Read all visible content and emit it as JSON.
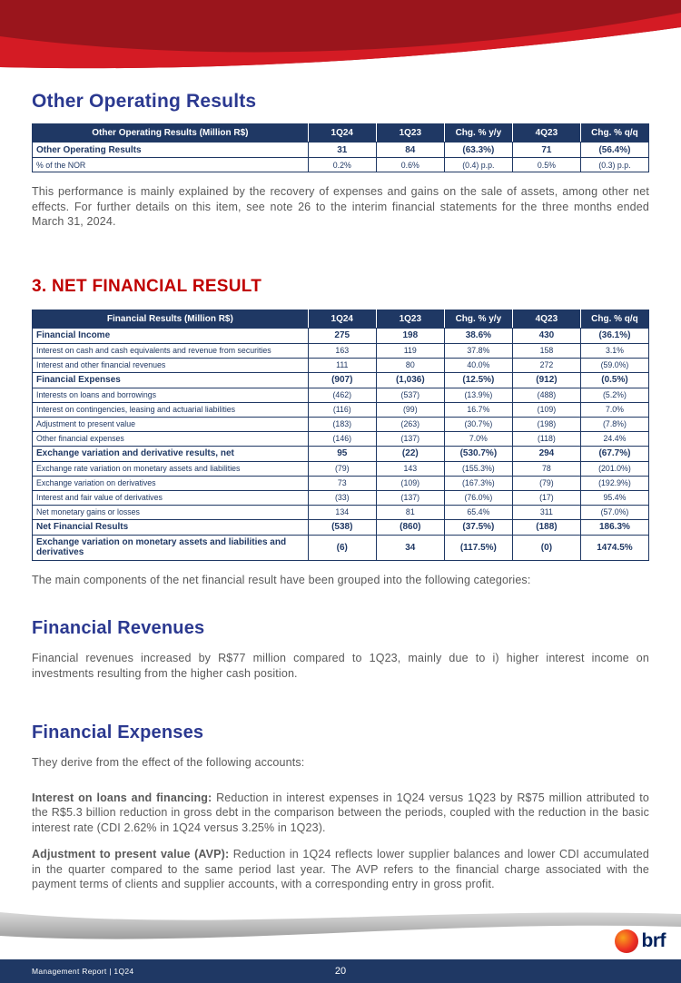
{
  "colors": {
    "banner_dark_red": "#9A151C",
    "banner_red": "#D41B24",
    "table_header_navy": "#1F3864",
    "heading_blue": "#2B3990",
    "heading_red": "#C00000",
    "body_gray": "#595959",
    "footer_gray": "#BFBFBF",
    "footer_navy": "#1F3864"
  },
  "heading1": "Other Operating Results",
  "table1": {
    "headers": [
      "Other Operating Results (Million R$)",
      "1Q24",
      "1Q23",
      "Chg. % y/y",
      "4Q23",
      "Chg. % q/q"
    ],
    "rows": [
      {
        "label": "Other Operating Results",
        "bold": true,
        "values": [
          "31",
          "84",
          "(63.3%)",
          "71",
          "(56.4%)"
        ]
      },
      {
        "label": "% of the NOR",
        "bold": false,
        "values": [
          "0.2%",
          "0.6%",
          "(0.4) p.p.",
          "0.5%",
          "(0.3) p.p."
        ]
      }
    ]
  },
  "para1": "This performance is mainly explained by the recovery of expenses and gains on the sale of assets, among other net effects. For further details on this item, see note 26 to the interim financial statements for the three months ended March 31, 2024.",
  "heading2": "3. NET FINANCIAL RESULT",
  "table2": {
    "headers": [
      "Financial Results (Million R$)",
      "1Q24",
      "1Q23",
      "Chg. % y/y",
      "4Q23",
      "Chg. % q/q"
    ],
    "rows": [
      {
        "label": "Financial Income",
        "bold": true,
        "values": [
          "275",
          "198",
          "38.6%",
          "430",
          "(36.1%)"
        ]
      },
      {
        "label": "Interest on cash and cash equivalents and revenue from securities",
        "bold": false,
        "values": [
          "163",
          "119",
          "37.8%",
          "158",
          "3.1%"
        ]
      },
      {
        "label": "Interest and other financial revenues",
        "bold": false,
        "values": [
          "111",
          "80",
          "40.0%",
          "272",
          "(59.0%)"
        ]
      },
      {
        "label": "Financial Expenses",
        "bold": true,
        "values": [
          "(907)",
          "(1,036)",
          "(12.5%)",
          "(912)",
          "(0.5%)"
        ]
      },
      {
        "label": "Interests on loans and borrowings",
        "bold": false,
        "values": [
          "(462)",
          "(537)",
          "(13.9%)",
          "(488)",
          "(5.2%)"
        ]
      },
      {
        "label": "Interest on contingencies, leasing and actuarial liabilities",
        "bold": false,
        "values": [
          "(116)",
          "(99)",
          "16.7%",
          "(109)",
          "7.0%"
        ]
      },
      {
        "label": "Adjustment to present value",
        "bold": false,
        "values": [
          "(183)",
          "(263)",
          "(30.7%)",
          "(198)",
          "(7.8%)"
        ]
      },
      {
        "label": "Other financial expenses",
        "bold": false,
        "values": [
          "(146)",
          "(137)",
          "7.0%",
          "(118)",
          "24.4%"
        ]
      },
      {
        "label": "Exchange variation and derivative results, net",
        "bold": true,
        "values": [
          "95",
          "(22)",
          "(530.7%)",
          "294",
          "(67.7%)"
        ]
      },
      {
        "label": "Exchange rate variation on monetary assets and liabilities",
        "bold": false,
        "values": [
          "(79)",
          "143",
          "(155.3%)",
          "78",
          "(201.0%)"
        ]
      },
      {
        "label": "Exchange variation on derivatives",
        "bold": false,
        "values": [
          "73",
          "(109)",
          "(167.3%)",
          "(79)",
          "(192.9%)"
        ]
      },
      {
        "label": "Interest and fair value of derivatives",
        "bold": false,
        "values": [
          "(33)",
          "(137)",
          "(76.0%)",
          "(17)",
          "95.4%"
        ]
      },
      {
        "label": "Net monetary gains or losses",
        "bold": false,
        "values": [
          "134",
          "81",
          "65.4%",
          "311",
          "(57.0%)"
        ]
      },
      {
        "label": "Net Financial Results",
        "bold": true,
        "values": [
          "(538)",
          "(860)",
          "(37.5%)",
          "(188)",
          "186.3%"
        ]
      },
      {
        "label": "Exchange variation on monetary assets and liabilities and derivatives",
        "bold": true,
        "values": [
          "(6)",
          "34",
          "(117.5%)",
          "(0)",
          "1474.5%"
        ]
      }
    ]
  },
  "para2": "The main components of the net financial result have been grouped into the following categories:",
  "heading3": "Financial Revenues",
  "para3": "Financial revenues increased by R$77 million compared to 1Q23, mainly due to i) higher interest income on investments resulting from the higher cash position.",
  "heading4": "Financial Expenses",
  "para4": "They derive from the effect of the following accounts:",
  "para5": {
    "lead": "Interest on loans and financing:",
    "text": " Reduction in interest expenses in 1Q24 versus 1Q23 by R$75 million attributed to the R$5.3 billion reduction in gross debt in the comparison between the periods, coupled with the reduction in the basic interest rate (CDI 2.62% in 1Q24 versus 3.25% in 1Q23)."
  },
  "para6": {
    "lead": "Adjustment to present value (AVP):",
    "text": " Reduction in 1Q24 reflects lower supplier balances and lower CDI accumulated in the quarter compared to the same period last year. The AVP refers to the financial charge associated with the payment terms of clients and supplier accounts, with a corresponding entry in gross profit."
  },
  "footer": {
    "left": "Management Report | 1Q24",
    "page_number": "20",
    "logo_text": "brf"
  }
}
